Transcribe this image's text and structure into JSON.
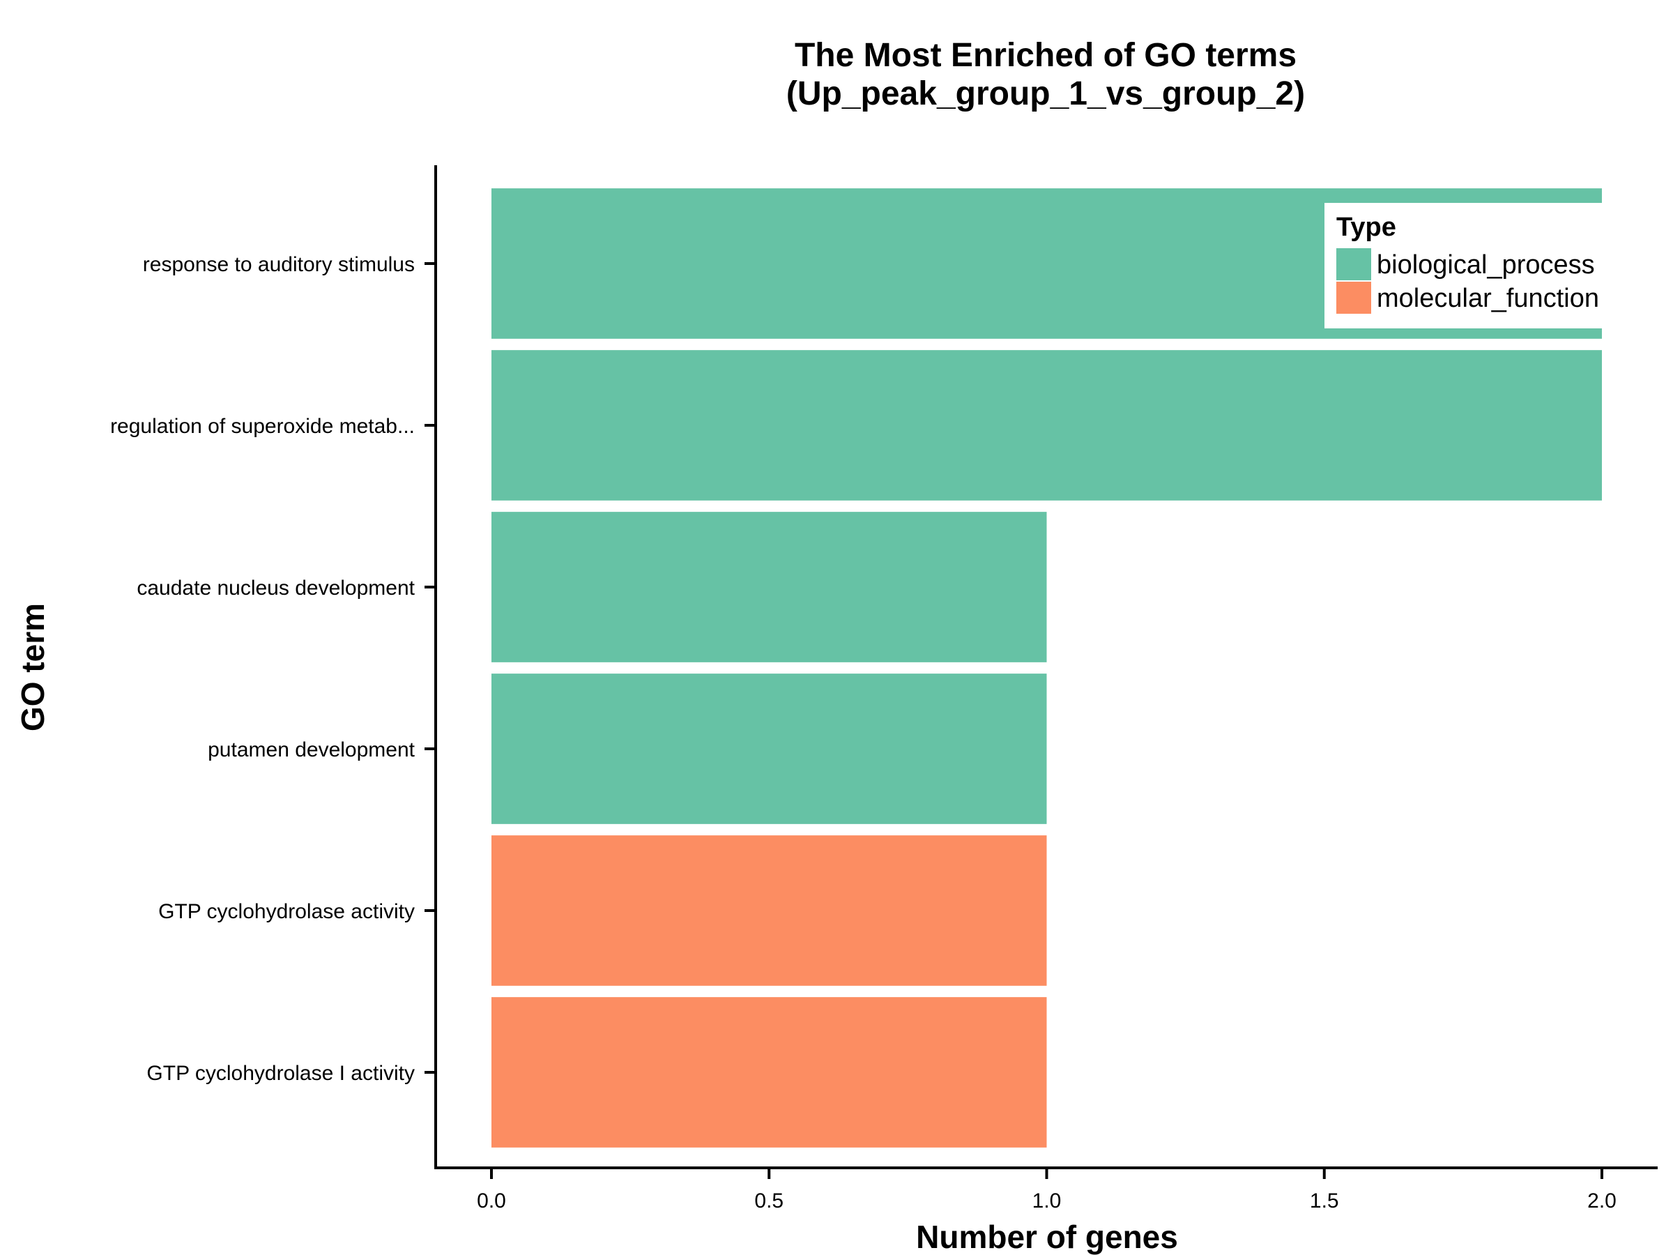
{
  "chart_data": {
    "type": "bar",
    "orientation": "horizontal",
    "title_line1": "The Most Enriched of GO terms",
    "title_line2": "(Up_peak_group_1_vs_group_2)",
    "xlabel": "Number of genes",
    "ylabel": "GO term",
    "xlim": [
      0,
      2
    ],
    "xticks": [
      "0.0",
      "0.5",
      "1.0",
      "1.5",
      "2.0"
    ],
    "xtick_values": [
      0,
      0.5,
      1,
      1.5,
      2
    ],
    "categories": [
      "response to auditory stimulus",
      "regulation of superoxide metab...",
      "caudate nucleus development",
      "putamen development",
      "GTP cyclohydrolase activity",
      "GTP cyclohydrolase I activity"
    ],
    "values": [
      2,
      2,
      1,
      1,
      1,
      1
    ],
    "types": [
      "biological_process",
      "biological_process",
      "biological_process",
      "biological_process",
      "molecular_function",
      "molecular_function"
    ],
    "legend": {
      "title": "Type",
      "position": "top-right",
      "entries": [
        {
          "name": "biological_process",
          "color": "#66c2a5"
        },
        {
          "name": "molecular_function",
          "color": "#fc8d62"
        }
      ]
    },
    "grid": false
  }
}
